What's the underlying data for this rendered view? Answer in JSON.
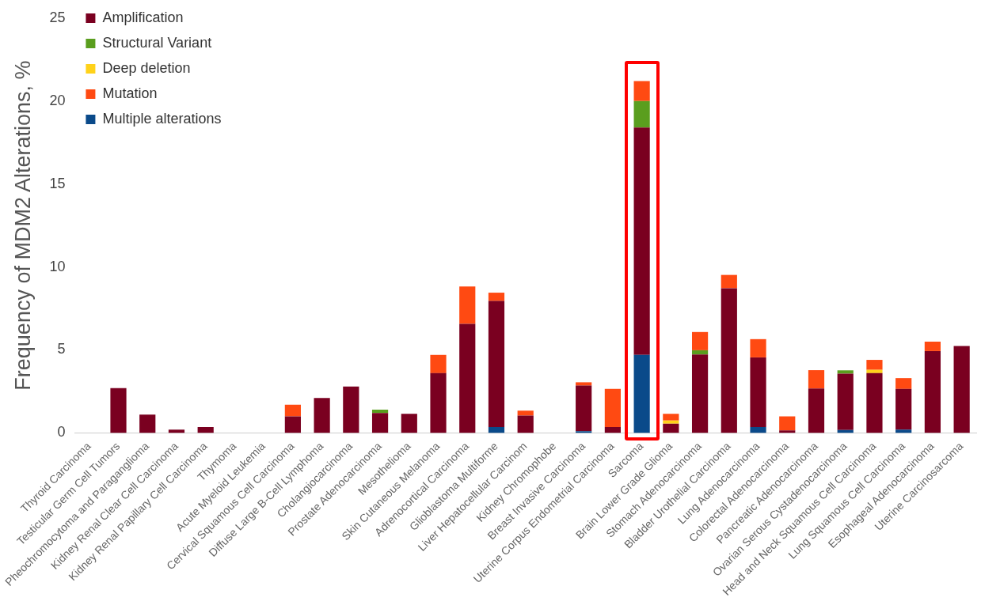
{
  "chart_data": {
    "type": "bar",
    "stacked": true,
    "ylabel": "Frequency of MDM2 Alterations, %",
    "categories": [
      "Thyroid Carcinoma",
      "Testicular Germ Cell Tumors",
      "Pheochromocytoma and Paraganglioma",
      "Kidney Renal Clear Cell Carcinoma",
      "Kidney Renal Papillary Cell Carcinoma",
      "Thymoma",
      "Acute Myeloid Leukemia",
      "Cervical Squamous Cell Carcinoma",
      "Diffuse Large B-Cell Lymphoma",
      "Cholangiocarcinoma",
      "Prostate Adenocarcinoma",
      "Mesothelioma",
      "Skin Cutaneous Melanoma",
      "Adrenocortical Carcinoma",
      "Glioblastoma Multiforme",
      "Liver Hepatocellular Carcinom",
      "Kidney Chromophobe",
      "Breast Invasive Carcinoma",
      "Uterine Corpus Endometrial Carcinoma",
      "Sarcoma",
      "Brain Lower Grade Glioma",
      "Stomach Adenocarcinoma",
      "Bladder Urothelial Carcinoma",
      "Lung Adenocarcinoma",
      "Colorectal Adenocarcinoma",
      "Pancreatic Adenocarcinoma",
      "Ovarian Serous Cystadenocarcinoma",
      "Head and Neck Squamous Cell Carcinoma",
      "Lung Squamous Cell Carcinoma",
      "Esophageal Adenocarcinoma",
      "Uterine Carcinosarcoma"
    ],
    "series": [
      {
        "name": "Multiple alterations",
        "color": "#0a4a8a",
        "values": [
          0,
          0,
          0,
          0,
          0,
          0,
          0,
          0,
          0,
          0,
          0,
          0,
          0,
          0,
          0.35,
          0,
          0,
          0.1,
          0,
          4.7,
          0,
          0,
          0,
          0.35,
          0,
          0,
          0.17,
          0,
          0.2,
          0,
          0
        ]
      },
      {
        "name": "Amplification",
        "color": "#7a0020",
        "values": [
          0,
          2.7,
          1.1,
          0.2,
          0.35,
          0,
          0,
          1.0,
          2.1,
          2.8,
          1.2,
          1.15,
          3.6,
          6.57,
          7.6,
          1.04,
          0,
          2.75,
          0.35,
          13.7,
          0.55,
          4.73,
          8.72,
          4.2,
          0.15,
          2.68,
          3.4,
          3.6,
          2.45,
          4.93,
          5.24
        ]
      },
      {
        "name": "Structural Variant",
        "color": "#5a9e1e",
        "values": [
          0,
          0,
          0,
          0,
          0,
          0,
          0,
          0,
          0,
          0,
          0.2,
          0,
          0,
          0,
          0,
          0,
          0,
          0,
          0,
          1.6,
          0,
          0.25,
          0,
          0,
          0,
          0,
          0.2,
          0,
          0,
          0,
          0
        ]
      },
      {
        "name": "Deep deletion",
        "color": "#ffd21a",
        "values": [
          0,
          0,
          0,
          0,
          0,
          0,
          0,
          0,
          0,
          0,
          0,
          0,
          0,
          0,
          0,
          0,
          0,
          0,
          0,
          0,
          0.2,
          0,
          0,
          0,
          0,
          0,
          0,
          0.2,
          0,
          0,
          0
        ]
      },
      {
        "name": "Mutation",
        "color": "#ff4a12",
        "values": [
          0,
          0,
          0,
          0,
          0,
          0,
          0,
          0.7,
          0,
          0,
          0,
          0,
          1.1,
          2.25,
          0.5,
          0.3,
          0,
          0.2,
          2.3,
          1.2,
          0.4,
          1.1,
          0.8,
          1.1,
          0.85,
          1.1,
          0,
          0.6,
          0.65,
          0.57,
          0
        ]
      }
    ],
    "ylim": [
      0,
      25
    ],
    "yticks": [
      0,
      5,
      10,
      15,
      20,
      25
    ],
    "grid": false,
    "legend": "top left"
  }
}
